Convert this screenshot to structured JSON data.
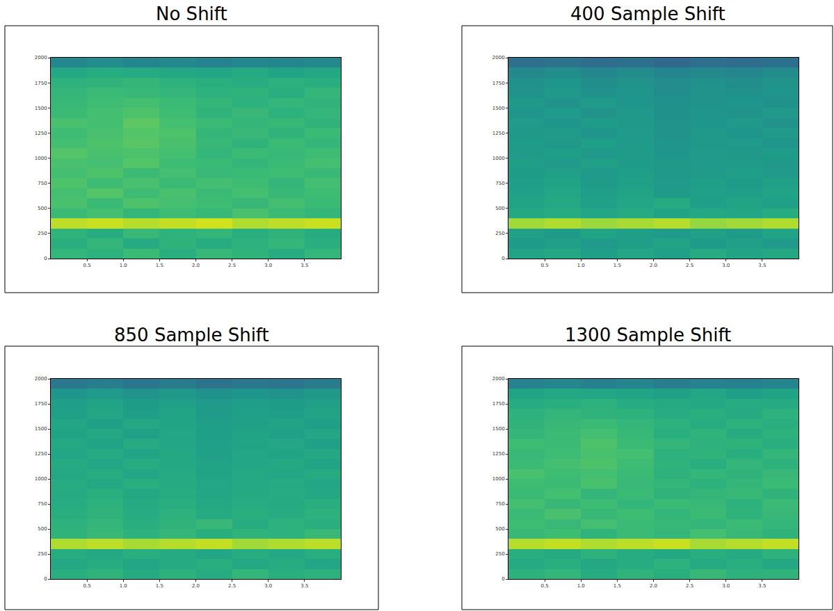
{
  "chart_data": [
    {
      "type": "heatmap",
      "title": "No Shift",
      "x": [
        0.25,
        0.75,
        1.25,
        1.75,
        2.25,
        2.75,
        3.25,
        3.75
      ],
      "y": [
        50,
        150,
        250,
        350,
        450,
        550,
        650,
        750,
        850,
        950,
        1050,
        1150,
        1250,
        1350,
        1450,
        1550,
        1650,
        1750,
        1850,
        1950
      ],
      "z": [
        [
          66,
          64,
          68,
          63,
          67,
          65,
          62,
          66
        ],
        [
          63,
          66,
          61,
          65,
          62,
          64,
          66,
          63
        ],
        [
          65,
          62,
          67,
          64,
          66,
          63,
          65,
          62
        ],
        [
          90,
          92,
          89,
          91,
          93,
          88,
          90,
          92
        ],
        [
          68,
          70,
          66,
          69,
          67,
          71,
          68,
          66
        ],
        [
          71,
          68,
          72,
          70,
          69,
          67,
          70,
          68
        ],
        [
          70,
          73,
          69,
          71,
          68,
          70,
          67,
          69
        ],
        [
          72,
          69,
          71,
          68,
          70,
          69,
          66,
          70
        ],
        [
          70,
          72,
          68,
          70,
          67,
          68,
          69,
          67
        ],
        [
          71,
          70,
          73,
          69,
          68,
          66,
          68,
          70
        ],
        [
          73,
          71,
          72,
          70,
          66,
          68,
          67,
          69
        ],
        [
          70,
          72,
          74,
          71,
          67,
          65,
          68,
          66
        ],
        [
          69,
          71,
          73,
          72,
          66,
          67,
          65,
          68
        ],
        [
          71,
          70,
          75,
          70,
          68,
          66,
          67,
          65
        ],
        [
          68,
          70,
          72,
          69,
          65,
          67,
          64,
          66
        ],
        [
          67,
          69,
          70,
          68,
          66,
          64,
          66,
          65
        ],
        [
          66,
          68,
          67,
          66,
          64,
          65,
          63,
          66
        ],
        [
          64,
          65,
          66,
          64,
          63,
          62,
          64,
          63
        ],
        [
          60,
          62,
          61,
          60,
          59,
          61,
          58,
          60
        ],
        [
          46,
          48,
          45,
          47,
          44,
          46,
          45,
          47
        ]
      ],
      "zlim": [
        0,
        100
      ],
      "xlim": [
        0,
        4
      ],
      "ylim": [
        0,
        2000
      ],
      "xticks": [
        0.5,
        {
          "value": 1,
          "label": "1.0"
        },
        1.5,
        {
          "value": 2,
          "label": "2.0"
        },
        2.5,
        {
          "value": 3,
          "label": "3.0"
        },
        3.5
      ],
      "yticks": [
        0,
        250,
        500,
        750,
        1000,
        1250,
        1500,
        1750,
        2000
      ]
    },
    {
      "type": "heatmap",
      "title": "400 Sample Shift",
      "x": [
        0.25,
        0.75,
        1.25,
        1.75,
        2.25,
        2.75,
        3.25,
        3.75
      ],
      "y": [
        50,
        150,
        250,
        350,
        450,
        550,
        650,
        750,
        850,
        950,
        1050,
        1150,
        1250,
        1350,
        1450,
        1550,
        1650,
        1750,
        1850,
        1950
      ],
      "z": [
        [
          58,
          60,
          56,
          59,
          57,
          61,
          58,
          60
        ],
        [
          55,
          57,
          54,
          56,
          58,
          55,
          57,
          54
        ],
        [
          57,
          55,
          58,
          56,
          54,
          57,
          55,
          58
        ],
        [
          86,
          88,
          85,
          87,
          89,
          84,
          86,
          88
        ],
        [
          60,
          62,
          59,
          61,
          58,
          60,
          59,
          62
        ],
        [
          58,
          60,
          57,
          59,
          61,
          56,
          58,
          57
        ],
        [
          57,
          59,
          56,
          58,
          55,
          57,
          56,
          58
        ],
        [
          56,
          58,
          55,
          57,
          54,
          56,
          55,
          57
        ],
        [
          55,
          57,
          54,
          56,
          53,
          55,
          56,
          54
        ],
        [
          56,
          54,
          57,
          55,
          53,
          54,
          55,
          53
        ],
        [
          54,
          56,
          53,
          55,
          52,
          54,
          53,
          55
        ],
        [
          55,
          53,
          56,
          54,
          52,
          53,
          54,
          52
        ],
        [
          53,
          55,
          52,
          54,
          51,
          53,
          52,
          54
        ],
        [
          54,
          52,
          55,
          53,
          51,
          52,
          53,
          51
        ],
        [
          52,
          54,
          51,
          53,
          50,
          52,
          51,
          53
        ],
        [
          53,
          51,
          54,
          52,
          50,
          51,
          52,
          50
        ],
        [
          51,
          53,
          50,
          52,
          49,
          51,
          50,
          52
        ],
        [
          50,
          52,
          49,
          51,
          48,
          50,
          49,
          51
        ],
        [
          47,
          49,
          46,
          48,
          45,
          47,
          46,
          48
        ],
        [
          36,
          38,
          35,
          37,
          34,
          36,
          35,
          37
        ]
      ],
      "zlim": [
        0,
        100
      ],
      "xlim": [
        0,
        4
      ],
      "ylim": [
        0,
        2000
      ],
      "xticks": [
        0.5,
        {
          "value": 1,
          "label": "1.0"
        },
        1.5,
        {
          "value": 2,
          "label": "2.0"
        },
        2.5,
        {
          "value": 3,
          "label": "3.0"
        },
        3.5
      ],
      "yticks": [
        0,
        250,
        500,
        750,
        1000,
        1250,
        1500,
        1750,
        2000
      ]
    },
    {
      "type": "heatmap",
      "title": "850 Sample Shift",
      "x": [
        0.25,
        0.75,
        1.25,
        1.75,
        2.25,
        2.75,
        3.25,
        3.75
      ],
      "y": [
        50,
        150,
        250,
        350,
        450,
        550,
        650,
        750,
        850,
        950,
        1050,
        1150,
        1250,
        1350,
        1450,
        1550,
        1650,
        1750,
        1850,
        1950
      ],
      "z": [
        [
          63,
          65,
          61,
          64,
          62,
          66,
          63,
          64
        ],
        [
          60,
          62,
          59,
          61,
          63,
          60,
          62,
          59
        ],
        [
          62,
          60,
          63,
          61,
          59,
          62,
          60,
          63
        ],
        [
          88,
          90,
          87,
          89,
          91,
          86,
          88,
          90
        ],
        [
          65,
          67,
          64,
          66,
          63,
          65,
          64,
          67
        ],
        [
          64,
          66,
          63,
          65,
          67,
          62,
          64,
          63
        ],
        [
          63,
          65,
          62,
          64,
          61,
          63,
          62,
          64
        ],
        [
          62,
          64,
          61,
          63,
          60,
          62,
          61,
          63
        ],
        [
          61,
          63,
          60,
          62,
          59,
          61,
          62,
          60
        ],
        [
          62,
          60,
          63,
          61,
          59,
          60,
          61,
          59
        ],
        [
          60,
          62,
          59,
          61,
          58,
          60,
          59,
          61
        ],
        [
          61,
          59,
          62,
          60,
          58,
          59,
          60,
          58
        ],
        [
          59,
          61,
          58,
          60,
          57,
          59,
          58,
          60
        ],
        [
          60,
          58,
          61,
          59,
          57,
          58,
          59,
          57
        ],
        [
          58,
          60,
          57,
          59,
          56,
          58,
          57,
          59
        ],
        [
          59,
          57,
          60,
          58,
          56,
          57,
          58,
          56
        ],
        [
          57,
          59,
          56,
          58,
          55,
          57,
          56,
          58
        ],
        [
          56,
          58,
          55,
          57,
          54,
          56,
          55,
          57
        ],
        [
          52,
          54,
          51,
          53,
          50,
          52,
          51,
          53
        ],
        [
          40,
          42,
          39,
          41,
          38,
          40,
          39,
          41
        ]
      ],
      "zlim": [
        0,
        100
      ],
      "xlim": [
        0,
        4
      ],
      "ylim": [
        0,
        2000
      ],
      "xticks": [
        0.5,
        {
          "value": 1,
          "label": "1.0"
        },
        1.5,
        {
          "value": 2,
          "label": "2.0"
        },
        2.5,
        {
          "value": 3,
          "label": "3.0"
        },
        3.5
      ],
      "yticks": [
        0,
        250,
        500,
        750,
        1000,
        1250,
        1500,
        1750,
        2000
      ]
    },
    {
      "type": "heatmap",
      "title": "1300 Sample Shift",
      "x": [
        0.25,
        0.75,
        1.25,
        1.75,
        2.25,
        2.75,
        3.25,
        3.75
      ],
      "y": [
        50,
        150,
        250,
        350,
        450,
        550,
        650,
        750,
        850,
        950,
        1050,
        1150,
        1250,
        1350,
        1450,
        1550,
        1650,
        1750,
        1850,
        1950
      ],
      "z": [
        [
          64,
          66,
          62,
          65,
          63,
          67,
          64,
          65
        ],
        [
          61,
          63,
          60,
          62,
          64,
          61,
          63,
          60
        ],
        [
          63,
          61,
          64,
          62,
          60,
          63,
          61,
          64
        ],
        [
          89,
          91,
          88,
          90,
          92,
          87,
          89,
          91
        ],
        [
          67,
          69,
          65,
          68,
          66,
          70,
          67,
          65
        ],
        [
          69,
          67,
          70,
          68,
          67,
          66,
          68,
          66
        ],
        [
          68,
          71,
          67,
          69,
          66,
          68,
          65,
          67
        ],
        [
          70,
          67,
          69,
          66,
          68,
          67,
          64,
          68
        ],
        [
          68,
          70,
          66,
          68,
          65,
          66,
          67,
          65
        ],
        [
          69,
          68,
          71,
          67,
          66,
          64,
          66,
          68
        ],
        [
          71,
          69,
          70,
          68,
          64,
          66,
          65,
          67
        ],
        [
          68,
          70,
          72,
          69,
          65,
          63,
          66,
          64
        ],
        [
          67,
          69,
          71,
          70,
          64,
          65,
          63,
          66
        ],
        [
          69,
          68,
          72,
          68,
          66,
          64,
          65,
          63
        ],
        [
          66,
          68,
          70,
          67,
          63,
          65,
          62,
          64
        ],
        [
          65,
          67,
          68,
          66,
          64,
          62,
          64,
          63
        ],
        [
          64,
          66,
          65,
          64,
          62,
          63,
          61,
          64
        ],
        [
          62,
          63,
          64,
          62,
          61,
          60,
          62,
          61
        ],
        [
          58,
          60,
          59,
          58,
          57,
          59,
          56,
          58
        ],
        [
          44,
          46,
          43,
          45,
          42,
          44,
          43,
          45
        ]
      ],
      "zlim": [
        0,
        100
      ],
      "xlim": [
        0,
        4
      ],
      "ylim": [
        0,
        2000
      ],
      "xticks": [
        0.5,
        {
          "value": 1,
          "label": "1.0"
        },
        1.5,
        {
          "value": 2,
          "label": "2.0"
        },
        2.5,
        {
          "value": 3,
          "label": "3.0"
        },
        3.5
      ],
      "yticks": [
        0,
        250,
        500,
        750,
        1000,
        1250,
        1500,
        1750,
        2000
      ]
    }
  ]
}
